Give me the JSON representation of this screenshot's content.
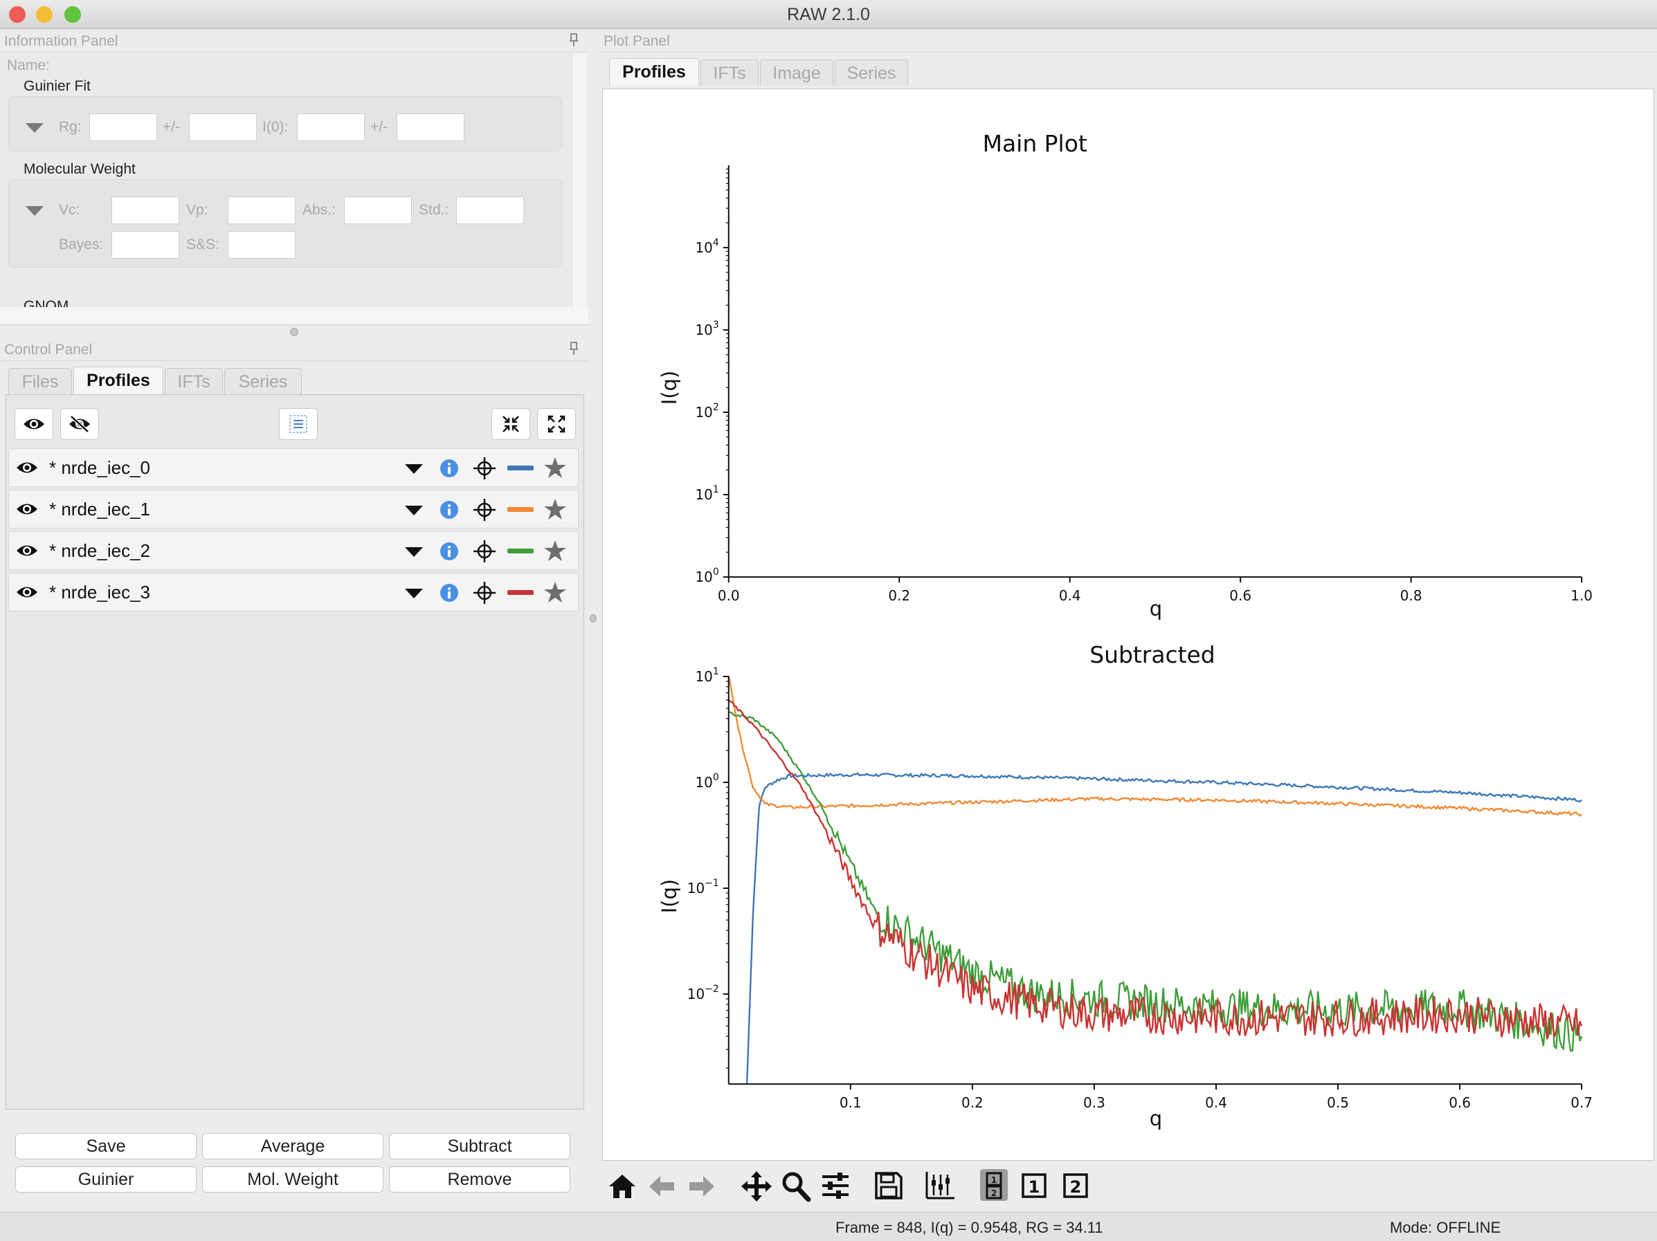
{
  "window": {
    "title": "RAW 2.1.0",
    "traffic_colors": [
      "#ee5c55",
      "#f5bd37",
      "#5fc43e"
    ]
  },
  "info_panel": {
    "title": "Information Panel",
    "name_label": "Name:",
    "guinier": {
      "title": "Guinier Fit",
      "rg": "Rg:",
      "pm1": "+/-",
      "i0": "I(0):",
      "pm2": "+/-"
    },
    "mw": {
      "title": "Molecular Weight",
      "vc": "Vc:",
      "vp": "Vp:",
      "abs": "Abs.:",
      "std": "Std.:",
      "bayes": "Bayes:",
      "ss": "S&S:"
    },
    "gnom": {
      "title": "GNOM"
    }
  },
  "control_panel": {
    "title": "Control Panel",
    "tabs": [
      "Files",
      "Profiles",
      "IFTs",
      "Series"
    ],
    "active_tab": "Profiles",
    "profiles": [
      {
        "name": "* nrde_iec_0",
        "color": "#3d77b6"
      },
      {
        "name": "* nrde_iec_1",
        "color": "#f28a33"
      },
      {
        "name": "* nrde_iec_2",
        "color": "#3f9e3a"
      },
      {
        "name": "* nrde_iec_3",
        "color": "#c93432"
      }
    ],
    "buttons": {
      "save": "Save",
      "average": "Average",
      "subtract": "Subtract",
      "guinier": "Guinier",
      "mol_weight": "Mol. Weight",
      "remove": "Remove"
    }
  },
  "plot_panel": {
    "title": "Plot Panel",
    "tabs": [
      "Profiles",
      "IFTs",
      "Image",
      "Series"
    ],
    "active_tab": "Profiles"
  },
  "chart_data": [
    {
      "type": "line",
      "title": "Main Plot",
      "xlabel": "q",
      "ylabel": "I(q)",
      "xlim": [
        0.0,
        1.0
      ],
      "y_scale": "log",
      "ylim_log10": [
        0,
        5
      ],
      "x_ticks": [
        "0.0",
        "0.2",
        "0.4",
        "0.6",
        "0.8",
        "1.0"
      ],
      "y_ticks": [
        {
          "base": "10",
          "exp": "0"
        },
        {
          "base": "10",
          "exp": "1"
        },
        {
          "base": "10",
          "exp": "2"
        },
        {
          "base": "10",
          "exp": "3"
        },
        {
          "base": "10",
          "exp": "4"
        }
      ],
      "series": []
    },
    {
      "type": "line",
      "title": "Subtracted",
      "xlabel": "q",
      "ylabel": "I(q)",
      "xlim": [
        0.0,
        0.7
      ],
      "y_scale": "log",
      "ylim_log10": [
        -2.85,
        1.0
      ],
      "x_ticks": [
        "0.1",
        "0.2",
        "0.3",
        "0.4",
        "0.5",
        "0.6",
        "0.7"
      ],
      "y_ticks": [
        {
          "base": "10",
          "exp": "1"
        },
        {
          "base": "10",
          "exp": "0"
        },
        {
          "base": "10",
          "exp": "−1"
        },
        {
          "base": "10",
          "exp": "−2"
        }
      ],
      "series": [
        {
          "color": "#3d77b6",
          "x": [
            0.015,
            0.02,
            0.025,
            0.03,
            0.04,
            0.05,
            0.1,
            0.2,
            0.3,
            0.4,
            0.5,
            0.6,
            0.7
          ],
          "y": [
            0.0014,
            0.06,
            0.6,
            0.9,
            1.05,
            1.15,
            1.18,
            1.15,
            1.08,
            1.0,
            0.9,
            0.8,
            0.68
          ]
        },
        {
          "color": "#f28a33",
          "x": [
            0.0,
            0.01,
            0.02,
            0.03,
            0.05,
            0.1,
            0.2,
            0.3,
            0.4,
            0.5,
            0.6,
            0.7
          ],
          "y": [
            10.0,
            2.5,
            0.9,
            0.62,
            0.58,
            0.6,
            0.65,
            0.7,
            0.68,
            0.63,
            0.57,
            0.5
          ]
        },
        {
          "color": "#3f9e3a",
          "x": [
            0.0,
            0.02,
            0.04,
            0.06,
            0.08,
            0.1,
            0.12,
            0.15,
            0.2,
            0.25,
            0.3,
            0.4,
            0.5,
            0.6,
            0.7
          ],
          "y": [
            4.5,
            4.0,
            2.6,
            1.2,
            0.5,
            0.17,
            0.06,
            0.035,
            0.016,
            0.01,
            0.009,
            0.0075,
            0.007,
            0.0075,
            0.004
          ]
        },
        {
          "color": "#c93432",
          "x": [
            0.0,
            0.02,
            0.04,
            0.06,
            0.08,
            0.1,
            0.12,
            0.15,
            0.2,
            0.25,
            0.3,
            0.4,
            0.5,
            0.6,
            0.7
          ],
          "y": [
            6.0,
            3.5,
            1.8,
            0.9,
            0.35,
            0.12,
            0.045,
            0.025,
            0.011,
            0.008,
            0.0065,
            0.006,
            0.006,
            0.0065,
            0.005
          ]
        }
      ]
    }
  ],
  "status": {
    "readout": "Frame = 848, I(q) = 0.9548, RG = 34.11",
    "mode": "Mode: OFFLINE"
  }
}
